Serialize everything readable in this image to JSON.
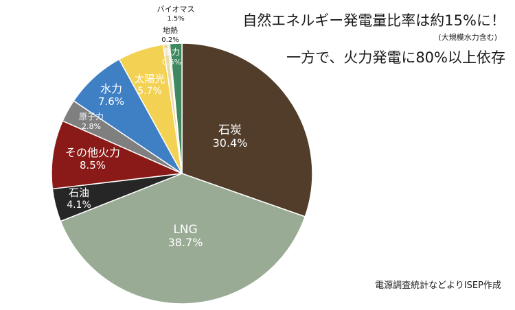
{
  "chart_data": {
    "type": "pie",
    "title_line1": "自然エネルギー発電量比率は約15%に！",
    "title_note": "(大規模水力含む)",
    "title_line2": "一方で、火力発電に80%以上依存",
    "source_note": "電源調査統計などよりISEP作成",
    "slices": [
      {
        "label": "石炭",
        "value": 30.4,
        "value_text": "30.4%",
        "color": "#523d2b",
        "text_color": "#ffffff"
      },
      {
        "label": "LNG",
        "value": 38.7,
        "value_text": "38.7%",
        "color": "#9aab95",
        "text_color": "#ffffff"
      },
      {
        "label": "石油",
        "value": 4.1,
        "value_text": "4.1%",
        "color": "#262626",
        "text_color": "#ffffff"
      },
      {
        "label": "その他火力",
        "value": 8.5,
        "value_text": "8.5%",
        "color": "#8a1a17",
        "text_color": "#ffffff"
      },
      {
        "label": "原子力",
        "value": 2.8,
        "value_text": "2.8%",
        "color": "#7f7f7f",
        "text_color": "#ffffff"
      },
      {
        "label": "水力",
        "value": 7.6,
        "value_text": "7.6%",
        "color": "#3f7fc4",
        "text_color": "#ffffff"
      },
      {
        "label": "太陽光",
        "value": 5.7,
        "value_text": "5.7%",
        "color": "#f3d153",
        "text_color": "#ffffff"
      },
      {
        "label": "風力",
        "value": 0.6,
        "value_text": "0.6%",
        "color": "#e9d9a4",
        "text_color": "#ffffff"
      },
      {
        "label": "地熱",
        "value": 0.2,
        "value_text": "0.2%",
        "color": "#c9c9c9",
        "text_color": "#1a1a1a"
      },
      {
        "label": "バイオマス",
        "value": 1.5,
        "value_text": "1.5%",
        "color": "#3e8a5e",
        "text_color": "#1a1a1a"
      }
    ]
  }
}
